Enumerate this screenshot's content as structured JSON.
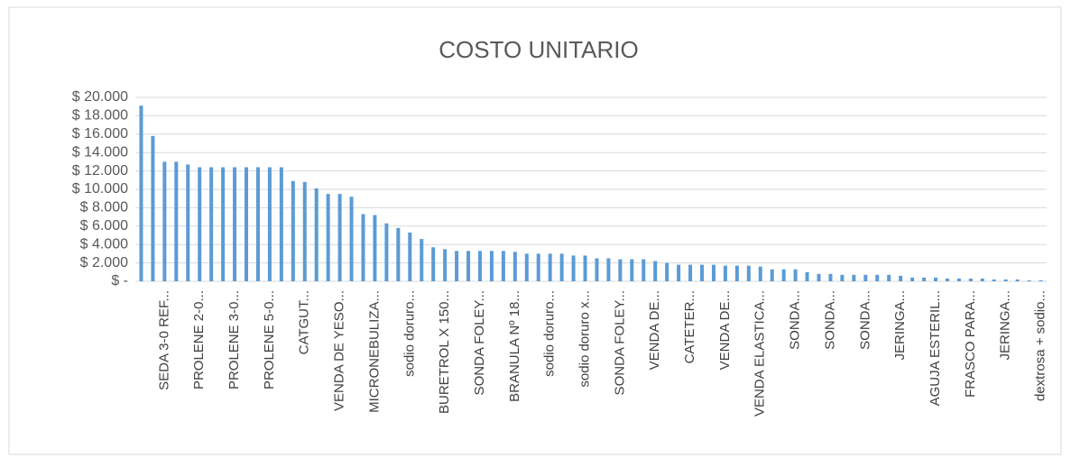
{
  "chart_data": {
    "type": "bar",
    "title": "COSTO UNITARIO",
    "categories": [
      null,
      null,
      "SEDA 3-0 REF...",
      null,
      null,
      "PROLENE 2-0...",
      null,
      null,
      "PROLENE 3-0...",
      null,
      null,
      "PROLENE 5-0...",
      null,
      null,
      "CATGUT...",
      null,
      null,
      "VENDA DE YESO...",
      null,
      null,
      "MICRONEBULIZA...",
      null,
      null,
      "sodio doruro...",
      null,
      null,
      "BURETROL X 150...",
      null,
      null,
      "SONDA  FOLEY...",
      null,
      null,
      "BRANULA Nº 18...",
      null,
      null,
      "sodio doruro...",
      null,
      null,
      "sodio doruro x...",
      null,
      null,
      "SONDA  FOLEY...",
      null,
      null,
      "VENDA DE...",
      null,
      null,
      "CATETER...",
      null,
      null,
      "VENDA DE...",
      null,
      null,
      "VENDA ELASTICA...",
      null,
      null,
      "SONDA...",
      null,
      null,
      "SONDA...",
      null,
      null,
      "SONDA...",
      null,
      null,
      "JERINGA...",
      null,
      null,
      "AGUJA ESTERIL...",
      null,
      null,
      "FRASCO PARA...",
      null,
      null,
      "JERINGA...",
      null,
      null,
      "dextrosa + sodio..."
    ],
    "values": [
      19100,
      15800,
      13000,
      13000,
      12700,
      12400,
      12400,
      12400,
      12400,
      12400,
      12400,
      12400,
      12400,
      10900,
      10800,
      10100,
      9500,
      9500,
      9200,
      7300,
      7200,
      6300,
      5800,
      5300,
      4600,
      3700,
      3500,
      3300,
      3300,
      3300,
      3300,
      3300,
      3200,
      3000,
      3000,
      3000,
      3000,
      2800,
      2800,
      2500,
      2500,
      2400,
      2400,
      2400,
      2200,
      2000,
      1800,
      1800,
      1800,
      1800,
      1700,
      1700,
      1700,
      1600,
      1300,
      1300,
      1300,
      1000,
      800,
      800,
      700,
      700,
      700,
      700,
      700,
      600,
      400,
      400,
      400,
      300,
      300,
      300,
      300,
      200,
      200,
      200,
      100,
      100
    ],
    "color": "#5b9bd5",
    "ylim": [
      0,
      20000
    ],
    "yticks": [
      {
        "value": 0,
        "label": "$ -"
      },
      {
        "value": 2000,
        "label": "$ 2.000"
      },
      {
        "value": 4000,
        "label": "$ 4.000"
      },
      {
        "value": 6000,
        "label": "$ 6.000"
      },
      {
        "value": 8000,
        "label": "$ 8.000"
      },
      {
        "value": 10000,
        "label": "$ 10.000"
      },
      {
        "value": 12000,
        "label": "$ 12.000"
      },
      {
        "value": 14000,
        "label": "$ 14.000"
      },
      {
        "value": 16000,
        "label": "$ 16.000"
      },
      {
        "value": 18000,
        "label": "$ 18.000"
      },
      {
        "value": 20000,
        "label": "$ 20.000"
      }
    ],
    "grid": true
  }
}
